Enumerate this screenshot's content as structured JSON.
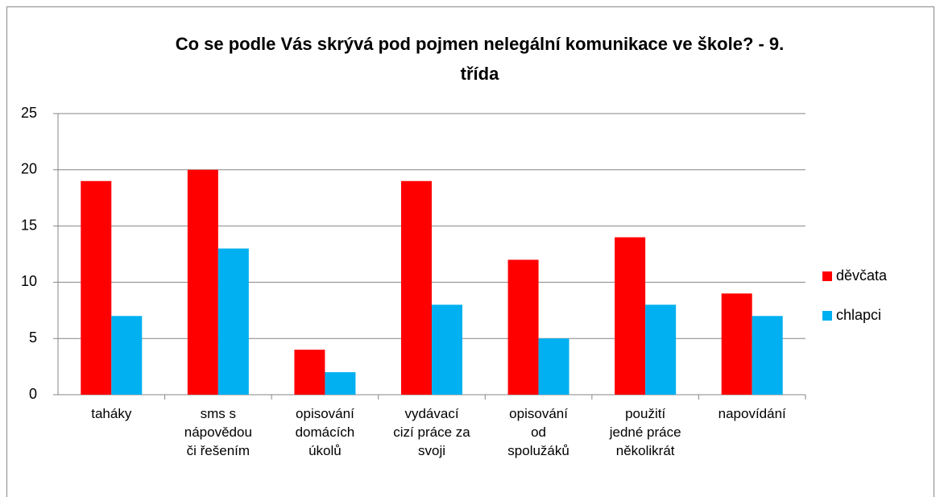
{
  "chart_data": {
    "type": "bar",
    "title": "Co se podle Vás skrývá pod pojmen nelegální komunikace ve škole? - 9. třída",
    "categories": [
      "taháky",
      "sms s\nnápovědou\nči řešením",
      "opisování\ndomácích\núkolů",
      "vydávací\ncizí práce za\nsvoji",
      "opisování\nod\nspolužáků",
      "použití\njedné práce\nněkolikrát",
      "napovídání"
    ],
    "series": [
      {
        "name": "děvčata",
        "color": "#ff0000",
        "values": [
          19,
          20,
          4,
          19,
          12,
          14,
          9
        ]
      },
      {
        "name": "chlapci",
        "color": "#00b0f0",
        "values": [
          7,
          13,
          2,
          8,
          5,
          8,
          7
        ]
      }
    ],
    "ylim": [
      0,
      25
    ],
    "yticks": [
      0,
      5,
      10,
      15,
      20,
      25
    ],
    "grid": true,
    "legend": "right"
  }
}
